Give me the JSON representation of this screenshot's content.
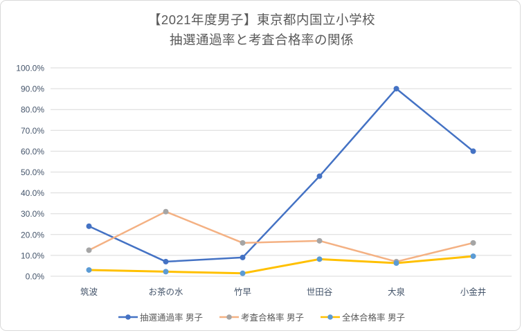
{
  "chart_data": {
    "type": "line",
    "title": "【2021年度男子】東京都内国立小学校",
    "subtitle": "抽選通過率と考査合格率の関係",
    "categories": [
      "筑波",
      "お茶の水",
      "竹早",
      "世田谷",
      "大泉",
      "小金井"
    ],
    "series": [
      {
        "name": "抽選通過率 男子",
        "values": [
          24,
          7,
          9,
          48,
          90,
          60
        ],
        "line_color": "#4472C4",
        "marker_color": "#4472C4",
        "line_width": 2.5
      },
      {
        "name": "考査合格率 男子",
        "values": [
          12.5,
          31,
          16,
          17,
          7,
          16
        ],
        "line_color": "#F4B183",
        "marker_color": "#A5A5A5",
        "line_width": 2.5
      },
      {
        "name": "全体合格率 男子",
        "values": [
          3.0,
          2.2,
          1.4,
          8.2,
          6.3,
          9.6
        ],
        "line_color": "#FFC000",
        "marker_color": "#5B9BD5",
        "line_width": 3
      }
    ],
    "y_axis": {
      "min": 0,
      "max": 100,
      "step": 10,
      "tick_labels": [
        "0.0%",
        "10.0%",
        "20.0%",
        "30.0%",
        "40.0%",
        "50.0%",
        "60.0%",
        "70.0%",
        "80.0%",
        "90.0%",
        "100.0%"
      ]
    },
    "grid": true,
    "legend_position": "bottom",
    "colors": {
      "gridline": "#D9D9D9",
      "axis_text": "#44546A",
      "title_text": "#595959",
      "legend_text": "#595959",
      "border": "#D9D9D9",
      "background": "#FFFFFF"
    }
  }
}
